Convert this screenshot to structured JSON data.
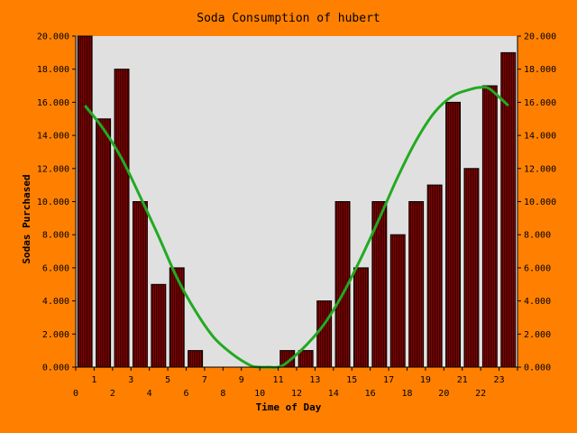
{
  "chart_data": {
    "type": "bar",
    "title": "Soda Consumption of hubert",
    "xlabel": "Time of Day",
    "ylabel": "Sodas Purchased",
    "ylim": [
      0,
      20
    ],
    "grid": false,
    "legend": "none",
    "y_tick_labels": [
      "0.000",
      "2.000",
      "4.000",
      "6.000",
      "8.000",
      "10.000",
      "12.000",
      "14.000",
      "16.000",
      "18.000",
      "20.000"
    ],
    "x_tick_labels_upper": [
      "1",
      "3",
      "5",
      "7",
      "9",
      "11",
      "13",
      "15",
      "17",
      "19",
      "21",
      "23"
    ],
    "x_tick_labels_lower": [
      "0",
      "2",
      "4",
      "6",
      "8",
      "10",
      "12",
      "14",
      "16",
      "18",
      "20",
      "22"
    ],
    "categories": [
      0,
      1,
      2,
      3,
      4,
      5,
      6,
      7,
      8,
      9,
      10,
      11,
      12,
      13,
      14,
      15,
      16,
      17,
      18,
      19,
      20,
      21,
      22,
      23
    ],
    "values": [
      20,
      15,
      18,
      10,
      5,
      6,
      1,
      0,
      0,
      0,
      0,
      1,
      1,
      4,
      10,
      6,
      10,
      8,
      10,
      11,
      16,
      12,
      17,
      19
    ],
    "trend_curve": {
      "x": [
        0,
        1,
        2,
        3,
        4,
        5,
        6,
        7,
        8,
        9,
        9.5,
        10,
        10.5,
        11,
        12,
        13,
        14,
        15,
        16,
        17,
        18,
        19,
        20,
        21,
        21.5,
        22,
        23
      ],
      "y": [
        15.8,
        14.4,
        12.6,
        10.3,
        7.9,
        5.4,
        3.4,
        1.8,
        0.8,
        0.1,
        0,
        0,
        0,
        0.3,
        1.3,
        2.6,
        4.4,
        6.6,
        9.0,
        11.5,
        13.7,
        15.4,
        16.4,
        16.8,
        16.9,
        16.8,
        15.8
      ]
    },
    "colors": {
      "background": "#ff8000",
      "plot_area": "#e0e0e0",
      "bar_fill": "#8b0000",
      "bar_stripe": "#330000",
      "trend_line": "#22aa22"
    }
  }
}
